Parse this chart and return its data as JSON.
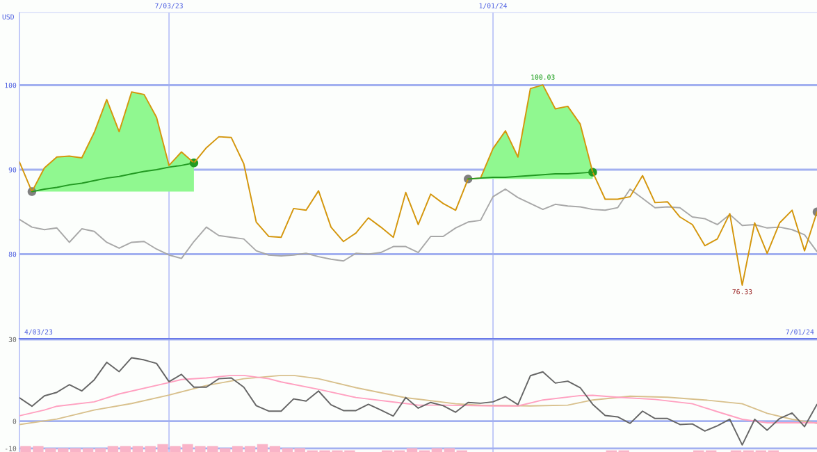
{
  "chart_data": [
    {
      "type": "line",
      "ylabel": "USD",
      "x": [
        "2023-04-10",
        "2023-04-17",
        "2023-04-24",
        "2023-05-01",
        "2023-05-08",
        "2023-05-15",
        "2023-05-22",
        "2023-05-29",
        "2023-06-05",
        "2023-06-12",
        "2023-06-19",
        "2023-06-26",
        "2023-07-03",
        "2023-07-10",
        "2023-07-17",
        "2023-07-24",
        "2023-07-31",
        "2023-08-07",
        "2023-08-14",
        "2023-08-21",
        "2023-08-28",
        "2023-09-04",
        "2023-09-11",
        "2023-09-18",
        "2023-09-25",
        "2023-10-02",
        "2023-10-09",
        "2023-10-16",
        "2023-10-23",
        "2023-10-30",
        "2023-11-06",
        "2023-11-13",
        "2023-11-20",
        "2023-11-27",
        "2023-12-04",
        "2023-12-11",
        "2023-12-18",
        "2023-12-25",
        "2024-01-01",
        "2024-01-08",
        "2024-01-15",
        "2024-01-22",
        "2024-01-29",
        "2024-02-05",
        "2024-02-12",
        "2024-02-19",
        "2024-02-26",
        "2024-03-04",
        "2024-03-11",
        "2024-03-18",
        "2024-03-25",
        "2024-04-01",
        "2024-04-08",
        "2024-04-15",
        "2024-04-22",
        "2024-04-29",
        "2024-05-06",
        "2024-05-13",
        "2024-05-20",
        "2024-05-27",
        "2024-06-03",
        "2024-06-10",
        "2024-06-17",
        "2024-06-24",
        "2024-07-01"
      ],
      "xlim": [
        "2023-04-10",
        "2024-07-01"
      ],
      "ylim": [
        70,
        108.6
      ],
      "xticks": [
        {
          "value": "2023-07-03",
          "label": "7/03/23"
        },
        {
          "value": "2024-01-01",
          "label": "1/01/24"
        }
      ],
      "yticks": [
        80,
        90,
        100
      ],
      "grid": true,
      "annotations": [
        "4/03/23",
        "7/01/24",
        {
          "text": "100.03",
          "x": "2024-01-29",
          "y": 100.03
        },
        {
          "text": "76.33",
          "x": "2024-05-20",
          "y": 76.33
        }
      ],
      "series": [
        {
          "color": "#a8a8a8",
          "values": [
            84.1,
            83.2,
            82.9,
            83.1,
            81.4,
            83.0,
            82.7,
            81.4,
            80.7,
            81.4,
            81.5,
            80.6,
            79.9,
            79.5,
            81.5,
            83.2,
            82.2,
            82.0,
            81.8,
            80.4,
            79.9,
            79.8,
            79.9,
            80.1,
            79.7,
            79.4,
            79.2,
            80.1,
            80.0,
            80.2,
            80.9,
            80.9,
            80.2,
            82.1,
            82.1,
            83.1,
            83.8,
            84.0,
            86.8,
            87.7,
            86.7,
            86.0,
            85.3,
            85.9,
            85.7,
            85.6,
            85.3,
            85.2,
            85.5,
            87.7,
            86.6,
            85.5,
            85.6,
            85.5,
            84.4,
            84.2,
            83.5,
            84.7,
            83.4,
            83.5,
            83.1,
            83.2,
            82.9,
            82.3,
            80.3
          ]
        },
        {
          "color": "#d4960c",
          "values": [
            90.9,
            87.4,
            90.2,
            91.5,
            91.6,
            91.4,
            94.4,
            98.3,
            94.5,
            99.2,
            98.9,
            96.2,
            90.5,
            92.1,
            90.8,
            92.6,
            93.9,
            93.8,
            90.7,
            83.8,
            82.1,
            82.0,
            85.4,
            85.2,
            87.5,
            83.2,
            81.5,
            82.5,
            84.3,
            83.2,
            82.0,
            87.3,
            83.5,
            87.1,
            86.0,
            85.2,
            88.9,
            89.0,
            92.5,
            94.6,
            91.5,
            99.6,
            100.03,
            97.2,
            97.5,
            95.4,
            89.7,
            86.5,
            86.5,
            86.8,
            89.3,
            86.1,
            86.2,
            84.4,
            83.5,
            81.0,
            81.8,
            84.8,
            76.33,
            83.7,
            80.1,
            83.7,
            85.2,
            80.4,
            85.0
          ]
        },
        {
          "color": "#229922",
          "x": [
            "2023-04-17",
            "2023-04-24",
            "2023-05-01",
            "2023-05-08",
            "2023-05-15",
            "2023-05-22",
            "2023-05-29",
            "2023-06-05",
            "2023-06-12",
            "2023-06-19",
            "2023-06-26",
            "2023-07-03",
            "2023-07-10",
            "2023-07-17"
          ],
          "values": [
            87.4,
            87.7,
            87.9,
            88.2,
            88.4,
            88.7,
            89.0,
            89.2,
            89.5,
            89.8,
            90.0,
            90.3,
            90.5,
            90.8
          ],
          "lower": [
            87.4,
            87.4,
            87.4,
            87.4,
            87.4,
            87.4,
            87.4,
            87.4,
            87.4,
            87.4,
            87.4,
            87.4,
            87.4,
            87.4
          ],
          "upper": [
            87.4,
            90.2,
            91.5,
            91.6,
            91.4,
            94.4,
            98.3,
            94.5,
            99.2,
            98.9,
            96.2,
            90.5,
            92.1,
            90.8
          ]
        },
        {
          "color": "#229922",
          "x": [
            "2023-12-18",
            "2023-12-25",
            "2024-01-01",
            "2024-01-08",
            "2024-01-15",
            "2024-01-22",
            "2024-01-29",
            "2024-02-05",
            "2024-02-12",
            "2024-02-19",
            "2024-02-26"
          ],
          "values": [
            88.9,
            89.0,
            89.1,
            89.1,
            89.2,
            89.3,
            89.4,
            89.5,
            89.5,
            89.6,
            89.7
          ],
          "lower": [
            88.9,
            88.9,
            88.9,
            88.9,
            88.9,
            88.9,
            88.9,
            88.9,
            88.9,
            88.9,
            88.9
          ],
          "upper": [
            88.9,
            89.0,
            92.5,
            94.6,
            91.5,
            99.6,
            100.03,
            97.2,
            97.5,
            95.4,
            89.7
          ]
        },
        {
          "type": "scatter",
          "marker": "circle",
          "x": [
            "2023-04-17",
            "2023-07-17",
            "2023-12-18",
            "2024-02-26",
            "2024-07-01"
          ],
          "values": [
            87.4,
            90.8,
            88.9,
            89.7,
            85.0
          ],
          "colors": [
            "#808080",
            "#229922",
            "#808080",
            "#229922",
            "#808080"
          ]
        }
      ]
    },
    {
      "type": "line",
      "x": [
        "2023-04-10",
        "2023-04-17",
        "2023-04-24",
        "2023-05-01",
        "2023-05-08",
        "2023-05-15",
        "2023-05-22",
        "2023-05-29",
        "2023-06-05",
        "2023-06-12",
        "2023-06-19",
        "2023-06-26",
        "2023-07-03",
        "2023-07-10",
        "2023-07-17",
        "2023-07-24",
        "2023-07-31",
        "2023-08-07",
        "2023-08-14",
        "2023-08-21",
        "2023-08-28",
        "2023-09-04",
        "2023-09-11",
        "2023-09-18",
        "2023-09-25",
        "2023-10-02",
        "2023-10-09",
        "2023-10-16",
        "2023-10-23",
        "2023-10-30",
        "2023-11-06",
        "2023-11-13",
        "2023-11-20",
        "2023-11-27",
        "2023-12-04",
        "2023-12-11",
        "2023-12-18",
        "2023-12-25",
        "2024-01-01",
        "2024-01-08",
        "2024-01-15",
        "2024-01-22",
        "2024-01-29",
        "2024-02-05",
        "2024-02-12",
        "2024-02-19",
        "2024-02-26",
        "2024-03-04",
        "2024-03-11",
        "2024-03-18",
        "2024-03-25",
        "2024-04-01",
        "2024-04-08",
        "2024-04-15",
        "2024-04-22",
        "2024-04-29",
        "2024-05-06",
        "2024-05-13",
        "2024-05-20",
        "2024-05-27",
        "2024-06-03",
        "2024-06-10",
        "2024-06-17",
        "2024-06-24",
        "2024-07-01"
      ],
      "xlim": [
        "2023-04-10",
        "2024-07-01"
      ],
      "ylim": [
        -11.3,
        30.3
      ],
      "xticks": [
        {
          "value": "2023-07-03",
          "label": null
        },
        {
          "value": "2024-01-01",
          "label": null
        }
      ],
      "yticks": [
        30,
        0,
        -10
      ],
      "grid": true,
      "tick_labels": "y",
      "series": [
        {
          "type": "bar",
          "color": "#f9b4c8",
          "x": [
            "2023-04-13T12:00",
            "2023-04-20T12:00",
            "2023-04-27T12:00",
            "2023-05-04T12:00",
            "2023-05-11T12:00",
            "2023-05-18T12:00",
            "2023-05-25T12:00",
            "2023-06-01T12:00",
            "2023-06-08T12:00",
            "2023-06-15T12:00",
            "2023-06-22T12:00",
            "2023-06-29T12:00",
            "2023-07-06T12:00",
            "2023-07-13T12:00",
            "2023-07-20T12:00",
            "2023-07-27T12:00",
            "2023-08-03T12:00",
            "2023-08-10T12:00",
            "2023-08-17T12:00",
            "2023-08-24T12:00",
            "2023-08-31T12:00",
            "2023-09-07T12:00",
            "2023-09-14T12:00",
            "2023-09-21T12:00",
            "2023-09-28T12:00",
            "2023-10-05T12:00",
            "2023-10-12T12:00",
            "2023-11-02T12:00",
            "2023-11-09T12:00",
            "2023-11-16T12:00",
            "2023-11-23T12:00",
            "2023-11-30T12:00",
            "2023-12-07T12:00",
            "2023-12-14T12:00",
            "2024-03-07T12:00",
            "2024-03-14T12:00",
            "2024-04-25T12:00",
            "2024-05-02T12:00",
            "2024-05-16T12:00",
            "2024-05-23T12:00",
            "2024-05-30T12:00",
            "2024-06-06T12:00"
          ],
          "values": [
            2.2,
            2.2,
            1.4,
            1.4,
            1.4,
            1.4,
            1.4,
            2.2,
            2.2,
            2.2,
            2.2,
            2.9,
            2.2,
            2.9,
            2.2,
            2.2,
            1.4,
            2.2,
            2.2,
            2.9,
            2.2,
            1.4,
            1.4,
            0.6,
            0.6,
            0.6,
            0.6,
            0.6,
            0.6,
            1.4,
            0.6,
            1.4,
            1.4,
            0.6,
            0.6,
            0.6,
            0.6,
            0.6,
            0.6,
            0.6,
            0.6,
            0.6
          ],
          "base": [
            -11.3,
            -11.3,
            -11.3,
            -11.3,
            -11.3,
            -11.3,
            -11.3,
            -11.3,
            -11.3,
            -11.3,
            -11.3,
            -11.3,
            -11.3,
            -11.3,
            -11.3,
            -11.3,
            -11.3,
            -11.3,
            -11.3,
            -11.3,
            -11.3,
            -11.3,
            -11.3,
            -11.3,
            -11.3,
            -11.3,
            -11.3,
            -11.3,
            -11.3,
            -11.3,
            -11.3,
            -11.3,
            -11.3,
            -11.3,
            -11.3,
            -11.3,
            -11.3,
            -11.3,
            -11.3,
            -11.3,
            -11.3,
            -11.3
          ]
        },
        {
          "color": "#d8c08c",
          "x": [
            "2023-04-10",
            "2023-05-01",
            "2023-05-22",
            "2023-06-12",
            "2023-07-03",
            "2023-07-24",
            "2023-08-14",
            "2023-09-04",
            "2023-09-11",
            "2023-09-25",
            "2023-10-16",
            "2023-11-13",
            "2023-11-20",
            "2023-12-11",
            "2023-12-25",
            "2024-01-22",
            "2024-02-12",
            "2024-02-26",
            "2024-03-18",
            "2024-04-08",
            "2024-04-29",
            "2024-05-20",
            "2024-06-03",
            "2024-06-17",
            "2024-07-01"
          ],
          "values": [
            -1.2,
            0.8,
            4.1,
            6.5,
            9.6,
            13.1,
            15.6,
            16.8,
            16.8,
            15.6,
            12.3,
            8.6,
            8.1,
            6.4,
            5.9,
            5.6,
            5.9,
            7.8,
            9.2,
            8.8,
            7.8,
            6.4,
            2.9,
            0.7,
            -0.8
          ]
        },
        {
          "color": "#ffa0c0",
          "x": [
            "2023-04-10",
            "2023-04-24",
            "2023-05-01",
            "2023-05-22",
            "2023-06-05",
            "2023-07-03",
            "2023-07-10",
            "2023-07-24",
            "2023-08-07",
            "2023-08-14",
            "2023-08-28",
            "2023-09-04",
            "2023-09-25",
            "2023-10-16",
            "2023-11-13",
            "2023-11-20",
            "2023-12-04",
            "2024-01-01",
            "2024-01-15",
            "2024-01-29",
            "2024-02-19",
            "2024-02-26",
            "2024-03-11",
            "2024-04-01",
            "2024-04-22",
            "2024-05-06",
            "2024-05-20",
            "2024-06-03",
            "2024-07-01"
          ],
          "values": [
            2.0,
            4.1,
            5.5,
            7.1,
            10.0,
            14.2,
            15.3,
            15.9,
            16.8,
            16.8,
            15.6,
            14.4,
            11.7,
            8.7,
            6.5,
            5.9,
            5.9,
            5.6,
            5.6,
            7.8,
            9.4,
            9.5,
            8.8,
            8.0,
            6.4,
            3.5,
            0.7,
            -0.6,
            -0.6
          ]
        },
        {
          "color": "#666666",
          "values": [
            8.6,
            5.5,
            9.3,
            10.6,
            13.4,
            11.1,
            15.2,
            21.6,
            18.2,
            23.3,
            22.5,
            21.2,
            14.5,
            17.2,
            12.5,
            12.5,
            15.6,
            15.9,
            12.5,
            5.7,
            3.7,
            3.7,
            8.2,
            7.4,
            11.1,
            6.0,
            3.9,
            3.9,
            6.2,
            4.1,
            1.9,
            8.7,
            4.8,
            6.9,
            5.7,
            3.3,
            6.9,
            6.6,
            7.1,
            9.0,
            6.1,
            16.7,
            18.1,
            14.0,
            14.7,
            12.3,
            6.2,
            2.1,
            1.6,
            -0.8,
            3.7,
            1.0,
            1.0,
            -1.2,
            -1.0,
            -3.6,
            -1.7,
            0.7,
            -8.7,
            0.7,
            -3.3,
            1.0,
            3.0,
            -2.0,
            6.2
          ]
        }
      ]
    }
  ]
}
